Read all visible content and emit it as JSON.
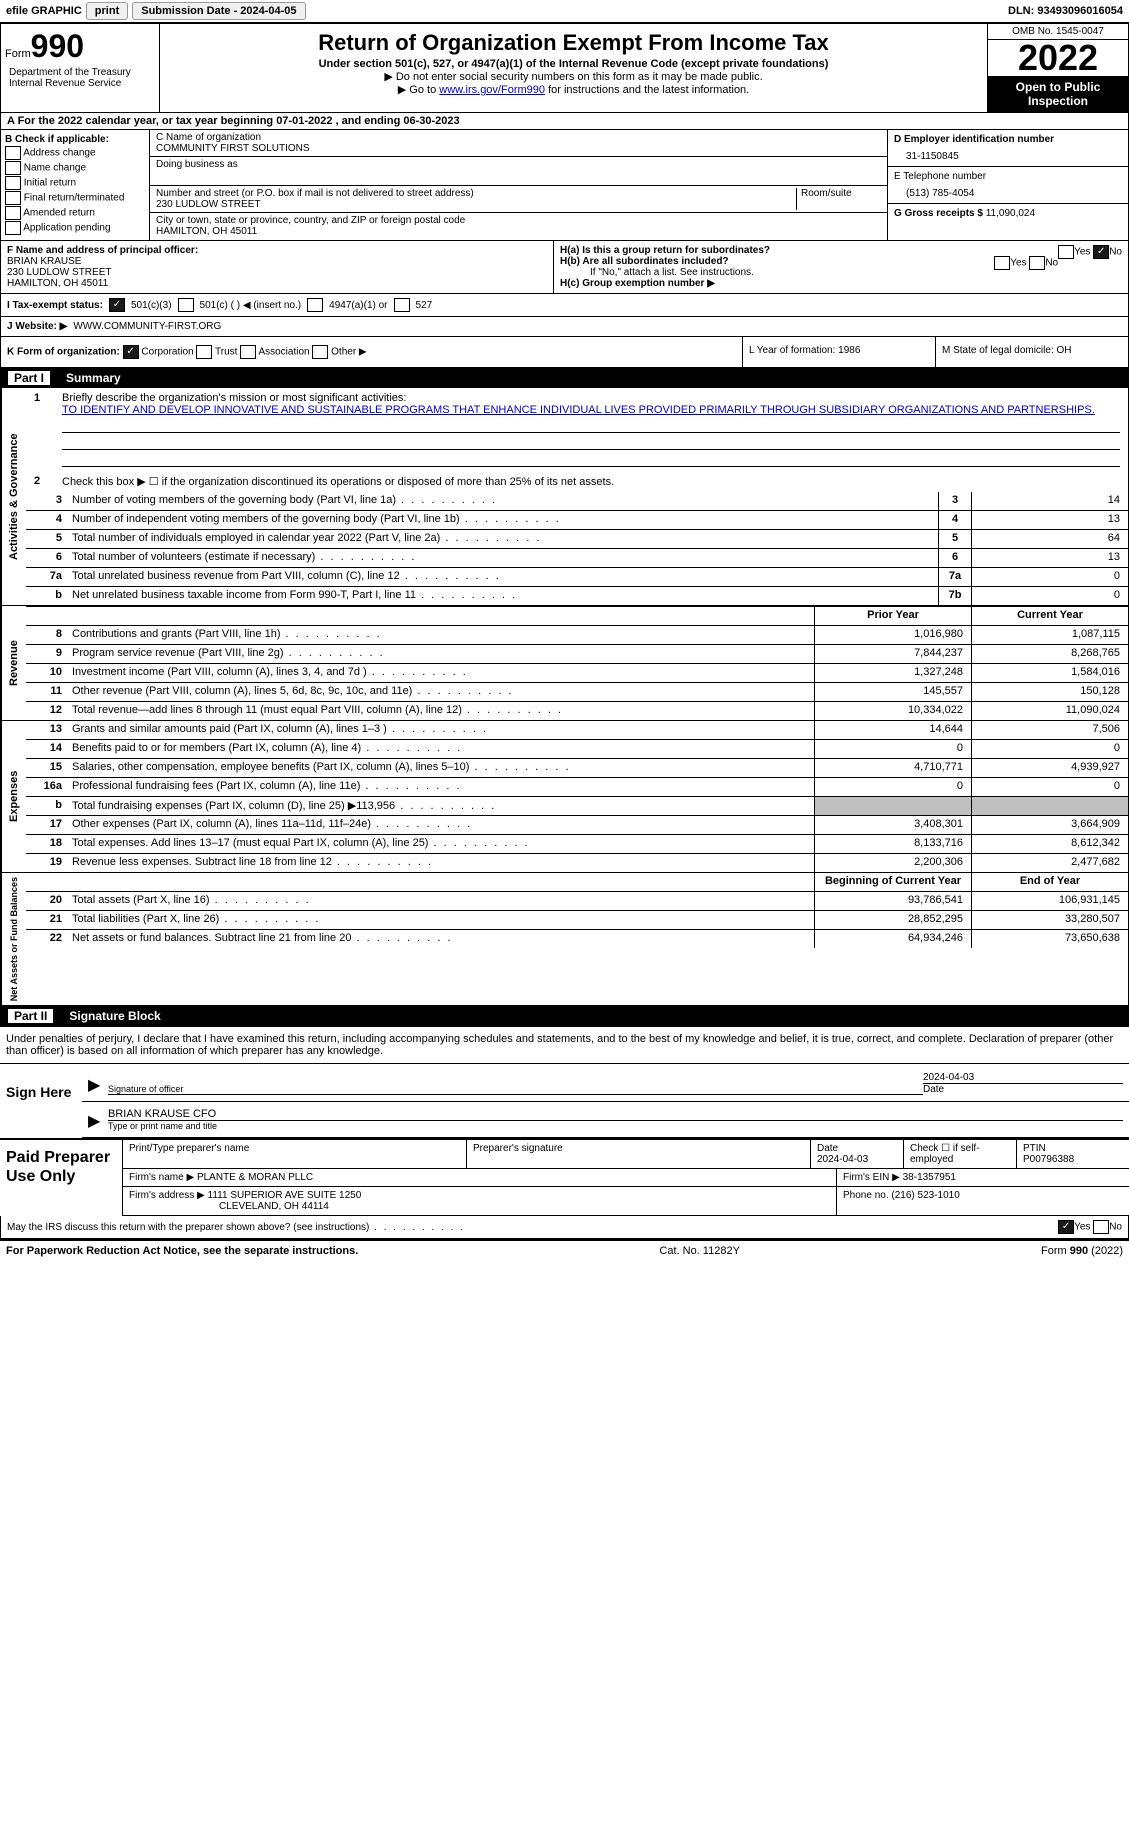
{
  "topbar": {
    "efile": "efile GRAPHIC",
    "print": "print",
    "sub_label": "Submission Date - 2024-04-05",
    "dln": "DLN: 93493096016054"
  },
  "header": {
    "form_prefix": "Form",
    "form_num": "990",
    "title": "Return of Organization Exempt From Income Tax",
    "subtitle": "Under section 501(c), 527, or 4947(a)(1) of the Internal Revenue Code (except private foundations)",
    "note1": "▶ Do not enter social security numbers on this form as it may be made public.",
    "note2_pre": "▶ Go to ",
    "note2_link": "www.irs.gov/Form990",
    "note2_post": " for instructions and the latest information.",
    "dept": "Department of the Treasury Internal Revenue Service",
    "omb": "OMB No. 1545-0047",
    "year": "2022",
    "open": "Open to Public Inspection"
  },
  "period": {
    "label": "A For the 2022 calendar year, or tax year beginning 07-01-2022   , and ending 06-30-2023"
  },
  "section_b": {
    "title": "B Check if applicable:",
    "opts": [
      "Address change",
      "Name change",
      "Initial return",
      "Final return/terminated",
      "Amended return",
      "Application pending"
    ]
  },
  "section_c": {
    "name_label": "C Name of organization",
    "name": "COMMUNITY FIRST SOLUTIONS",
    "dba_label": "Doing business as",
    "addr_label": "Number and street (or P.O. box if mail is not delivered to street address)",
    "room_label": "Room/suite",
    "addr": "230 LUDLOW STREET",
    "city_label": "City or town, state or province, country, and ZIP or foreign postal code",
    "city": "HAMILTON, OH  45011"
  },
  "section_d": {
    "ein_label": "D Employer identification number",
    "ein": "31-1150845",
    "phone_label": "E Telephone number",
    "phone": "(513) 785-4054",
    "gross_label": "G Gross receipts $",
    "gross": "11,090,024"
  },
  "section_f": {
    "label": "F  Name and address of principal officer:",
    "name": "BRIAN KRAUSE",
    "addr1": "230 LUDLOW STREET",
    "addr2": "HAMILTON, OH  45011"
  },
  "section_h": {
    "ha": "H(a)  Is this a group return for subordinates?",
    "hb": "H(b)  Are all subordinates included?",
    "hb_note": "If \"No,\" attach a list. See instructions.",
    "hc": "H(c)  Group exemption number ▶"
  },
  "tax_status": {
    "label": "I  Tax-exempt status:",
    "o1": "501(c)(3)",
    "o2": "501(c) (  ) ◀ (insert no.)",
    "o3": "4947(a)(1) or",
    "o4": "527"
  },
  "website": {
    "label": "J  Website: ▶",
    "url": "WWW.COMMUNITY-FIRST.ORG"
  },
  "section_k": {
    "label": "K Form of organization:",
    "opts": [
      "Corporation",
      "Trust",
      "Association",
      "Other ▶"
    ]
  },
  "section_l": {
    "label": "L Year of formation: 1986"
  },
  "section_m": {
    "label": "M State of legal domicile: OH"
  },
  "part1": {
    "title": "Part I",
    "name": "Summary",
    "q1_label": "1",
    "q1_text": "Briefly describe the organization's mission or most significant activities:",
    "mission": "TO IDENTIFY AND DEVELOP INNOVATIVE AND SUSTAINABLE PROGRAMS THAT ENHANCE INDIVIDUAL LIVES PROVIDED PRIMARILY THROUGH SUBSIDIARY ORGANIZATIONS AND PARTNERSHIPS.",
    "q2": "Check this box ▶ ☐ if the organization discontinued its operations or disposed of more than 25% of its net assets.",
    "side_ag": "Activities & Governance",
    "side_rev": "Revenue",
    "side_exp": "Expenses",
    "side_net": "Net Assets or Fund Balances",
    "prior_header": "Prior Year",
    "curr_header": "Current Year",
    "boy_header": "Beginning of Current Year",
    "eoy_header": "End of Year",
    "rows_gov": [
      {
        "n": "3",
        "d": "Number of voting members of the governing body (Part VI, line 1a)",
        "b": "3",
        "v": "14"
      },
      {
        "n": "4",
        "d": "Number of independent voting members of the governing body (Part VI, line 1b)",
        "b": "4",
        "v": "13"
      },
      {
        "n": "5",
        "d": "Total number of individuals employed in calendar year 2022 (Part V, line 2a)",
        "b": "5",
        "v": "64"
      },
      {
        "n": "6",
        "d": "Total number of volunteers (estimate if necessary)",
        "b": "6",
        "v": "13"
      },
      {
        "n": "7a",
        "d": "Total unrelated business revenue from Part VIII, column (C), line 12",
        "b": "7a",
        "v": "0"
      },
      {
        "n": "b",
        "d": "Net unrelated business taxable income from Form 990-T, Part I, line 11",
        "b": "7b",
        "v": "0"
      }
    ],
    "rows_rev": [
      {
        "n": "8",
        "d": "Contributions and grants (Part VIII, line 1h)",
        "p": "1,016,980",
        "c": "1,087,115"
      },
      {
        "n": "9",
        "d": "Program service revenue (Part VIII, line 2g)",
        "p": "7,844,237",
        "c": "8,268,765"
      },
      {
        "n": "10",
        "d": "Investment income (Part VIII, column (A), lines 3, 4, and 7d )",
        "p": "1,327,248",
        "c": "1,584,016"
      },
      {
        "n": "11",
        "d": "Other revenue (Part VIII, column (A), lines 5, 6d, 8c, 9c, 10c, and 11e)",
        "p": "145,557",
        "c": "150,128"
      },
      {
        "n": "12",
        "d": "Total revenue—add lines 8 through 11 (must equal Part VIII, column (A), line 12)",
        "p": "10,334,022",
        "c": "11,090,024"
      }
    ],
    "rows_exp": [
      {
        "n": "13",
        "d": "Grants and similar amounts paid (Part IX, column (A), lines 1–3 )",
        "p": "14,644",
        "c": "7,506"
      },
      {
        "n": "14",
        "d": "Benefits paid to or for members (Part IX, column (A), line 4)",
        "p": "0",
        "c": "0"
      },
      {
        "n": "15",
        "d": "Salaries, other compensation, employee benefits (Part IX, column (A), lines 5–10)",
        "p": "4,710,771",
        "c": "4,939,927"
      },
      {
        "n": "16a",
        "d": "Professional fundraising fees (Part IX, column (A), line 11e)",
        "p": "0",
        "c": "0"
      },
      {
        "n": "b",
        "d": "Total fundraising expenses (Part IX, column (D), line 25) ▶113,956",
        "p": "",
        "c": "",
        "gray": true
      },
      {
        "n": "17",
        "d": "Other expenses (Part IX, column (A), lines 11a–11d, 11f–24e)",
        "p": "3,408,301",
        "c": "3,664,909"
      },
      {
        "n": "18",
        "d": "Total expenses. Add lines 13–17 (must equal Part IX, column (A), line 25)",
        "p": "8,133,716",
        "c": "8,612,342"
      },
      {
        "n": "19",
        "d": "Revenue less expenses. Subtract line 18 from line 12",
        "p": "2,200,306",
        "c": "2,477,682"
      }
    ],
    "rows_net": [
      {
        "n": "20",
        "d": "Total assets (Part X, line 16)",
        "p": "93,786,541",
        "c": "106,931,145"
      },
      {
        "n": "21",
        "d": "Total liabilities (Part X, line 26)",
        "p": "28,852,295",
        "c": "33,280,507"
      },
      {
        "n": "22",
        "d": "Net assets or fund balances. Subtract line 21 from line 20",
        "p": "64,934,246",
        "c": "73,650,638"
      }
    ]
  },
  "part2": {
    "title": "Part II",
    "name": "Signature Block",
    "declaration": "Under penalties of perjury, I declare that I have examined this return, including accompanying schedules and statements, and to the best of my knowledge and belief, it is true, correct, and complete. Declaration of preparer (other than officer) is based on all information of which preparer has any knowledge.",
    "sign_here": "Sign Here",
    "sig_officer": "Signature of officer",
    "sig_date": "2024-04-03",
    "sig_name_label": "Type or print name and title",
    "sig_name": "BRIAN KRAUSE CFO",
    "paid_label": "Paid Preparer Use Only",
    "prep_name_label": "Print/Type preparer's name",
    "prep_sig_label": "Preparer's signature",
    "prep_date_label": "Date",
    "prep_date": "2024-04-03",
    "prep_check_label": "Check ☐ if self-employed",
    "ptin_label": "PTIN",
    "ptin": "P00796388",
    "firm_name_label": "Firm's name    ▶",
    "firm_name": "PLANTE & MORAN PLLC",
    "firm_ein_label": "Firm's EIN ▶",
    "firm_ein": "38-1357951",
    "firm_addr_label": "Firm's address ▶",
    "firm_addr1": "1111 SUPERIOR AVE SUITE 1250",
    "firm_addr2": "CLEVELAND, OH  44114",
    "firm_phone_label": "Phone no.",
    "firm_phone": "(216) 523-1010",
    "discuss": "May the IRS discuss this return with the preparer shown above? (see instructions)",
    "yes": "Yes",
    "no": "No"
  },
  "footer": {
    "left": "For Paperwork Reduction Act Notice, see the separate instructions.",
    "mid": "Cat. No. 11282Y",
    "right": "Form 990 (2022)"
  }
}
